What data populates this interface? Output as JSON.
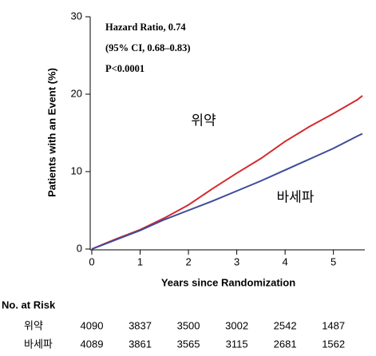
{
  "chart_data": {
    "type": "line",
    "annotations": [
      "Hazard Ratio, 0.74",
      "(95% CI, 0.68–0.83)",
      "P<0.0001"
    ],
    "xlabel": "Years since Randomization",
    "ylabel": "Patients with an Event (%)",
    "x": [
      0,
      0.5,
      1,
      1.5,
      2,
      2.5,
      3,
      3.5,
      4,
      4.5,
      5,
      5.5,
      5.6
    ],
    "series": [
      {
        "name": "위약",
        "color": "#d42a2f",
        "values": [
          0,
          1.3,
          2.5,
          4.0,
          5.7,
          7.8,
          9.8,
          11.7,
          13.9,
          15.8,
          17.5,
          19.3,
          19.8
        ]
      },
      {
        "name": "바세파",
        "color": "#3d4a9a",
        "values": [
          0,
          1.2,
          2.4,
          3.8,
          5.0,
          6.2,
          7.5,
          8.8,
          10.2,
          11.6,
          13.0,
          14.6,
          14.9
        ]
      }
    ],
    "xlim": [
      0,
      5.65
    ],
    "xticks": [
      0,
      1,
      2,
      3,
      4,
      5
    ],
    "ylim": [
      0,
      30
    ],
    "yticks": [
      0,
      10,
      20,
      30
    ],
    "risk_table": {
      "title": "No. at Risk",
      "rows": [
        {
          "name": "위약",
          "values": [
            4090,
            3837,
            3500,
            3002,
            2542,
            1487
          ]
        },
        {
          "name": "바세파",
          "values": [
            4089,
            3861,
            3565,
            3115,
            2681,
            1562
          ]
        }
      ]
    }
  }
}
